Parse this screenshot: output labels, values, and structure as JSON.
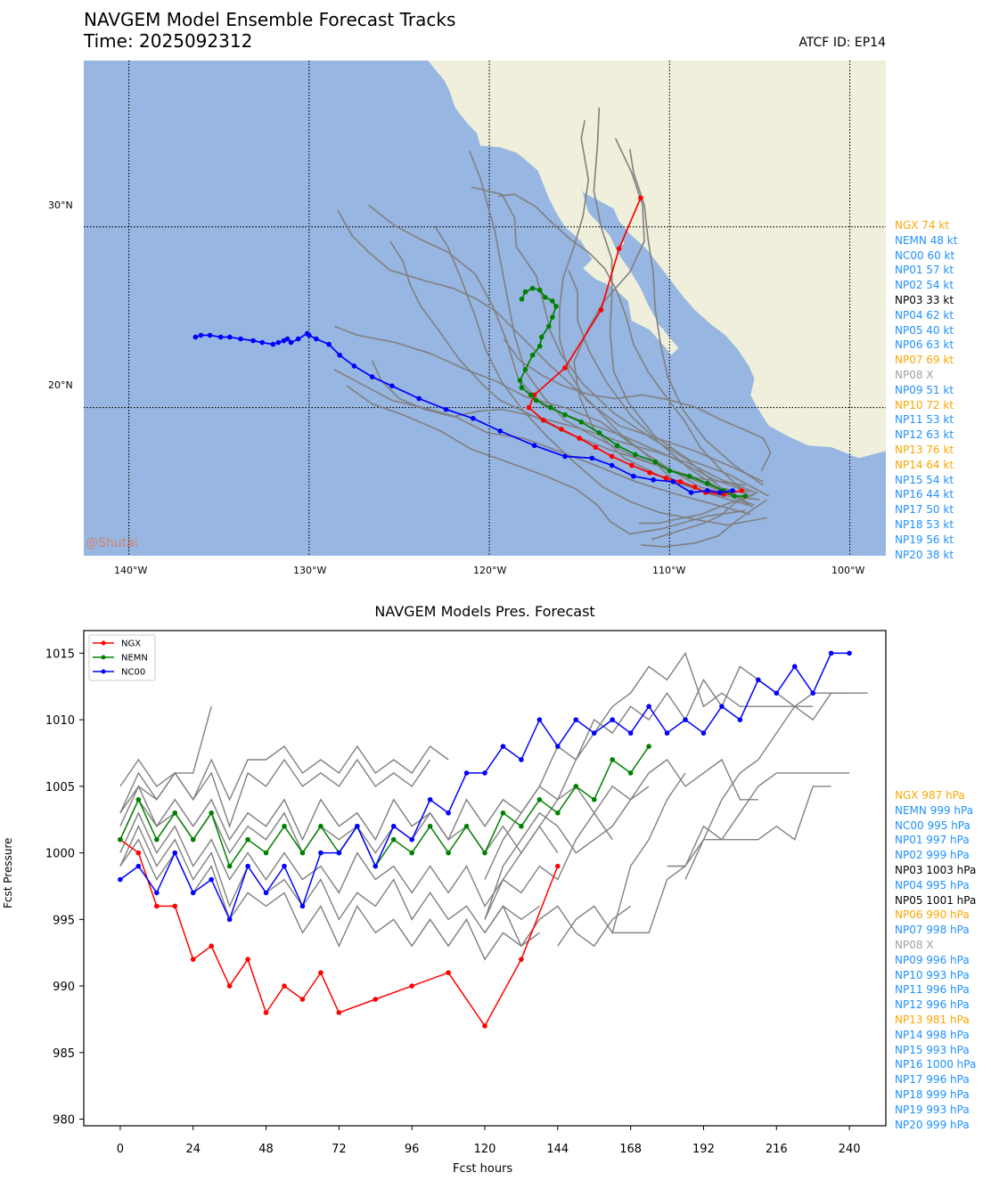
{
  "header": {
    "title": "NAVGEM Model Ensemble Forecast Tracks",
    "time_label": "Time: 2025092312",
    "atcf_label": "ATCF ID: EP14"
  },
  "map": {
    "lat_ticks": [
      "30°N",
      "20°N"
    ],
    "lon_ticks": [
      "140°W",
      "130°W",
      "120°W",
      "110°W",
      "100°W"
    ],
    "watermark": "@Shutai",
    "colors": {
      "ocean": "#97b6e1",
      "land": "#efefdc",
      "ngx": "#ff0000",
      "nemn": "#008000",
      "nc00": "#0000ff",
      "members": "#808080"
    }
  },
  "track_labels": [
    {
      "text": "NGX 74 kt",
      "color": "#ffa500"
    },
    {
      "text": "NEMN 48 kt",
      "color": "#1e90ff"
    },
    {
      "text": "NC00 60 kt",
      "color": "#1e90ff"
    },
    {
      "text": "NP01 57 kt",
      "color": "#1e90ff"
    },
    {
      "text": "NP02 54 kt",
      "color": "#1e90ff"
    },
    {
      "text": "NP03 33 kt",
      "color": "#000000"
    },
    {
      "text": "NP04 62 kt",
      "color": "#1e90ff"
    },
    {
      "text": "NP05 40 kt",
      "color": "#1e90ff"
    },
    {
      "text": "NP06 63 kt",
      "color": "#1e90ff"
    },
    {
      "text": "NP07 69 kt",
      "color": "#ffa500"
    },
    {
      "text": "NP08 X",
      "color": "#a0a0a0"
    },
    {
      "text": "NP09 51 kt",
      "color": "#1e90ff"
    },
    {
      "text": "NP10 72 kt",
      "color": "#ffa500"
    },
    {
      "text": "NP11 53 kt",
      "color": "#1e90ff"
    },
    {
      "text": "NP12 63 kt",
      "color": "#1e90ff"
    },
    {
      "text": "NP13 76 kt",
      "color": "#ffa500"
    },
    {
      "text": "NP14 64 kt",
      "color": "#ffa500"
    },
    {
      "text": "NP15 54 kt",
      "color": "#1e90ff"
    },
    {
      "text": "NP16 44 kt",
      "color": "#1e90ff"
    },
    {
      "text": "NP17 50 kt",
      "color": "#1e90ff"
    },
    {
      "text": "NP18 53 kt",
      "color": "#1e90ff"
    },
    {
      "text": "NP19 56 kt",
      "color": "#1e90ff"
    },
    {
      "text": "NP20 38 kt",
      "color": "#1e90ff"
    }
  ],
  "pressure_labels": [
    {
      "text": "NGX 987 hPa",
      "color": "#ffa500"
    },
    {
      "text": "NEMN 999 hPa",
      "color": "#1e90ff"
    },
    {
      "text": "NC00 995 hPa",
      "color": "#1e90ff"
    },
    {
      "text": "NP01 997 hPa",
      "color": "#1e90ff"
    },
    {
      "text": "NP02 999 hPa",
      "color": "#1e90ff"
    },
    {
      "text": "NP03 1003 hPa",
      "color": "#000000"
    },
    {
      "text": "NP04 995 hPa",
      "color": "#1e90ff"
    },
    {
      "text": "NP05 1001 hPa",
      "color": "#000000"
    },
    {
      "text": "NP06 990 hPa",
      "color": "#ffa500"
    },
    {
      "text": "NP07 998 hPa",
      "color": "#1e90ff"
    },
    {
      "text": "NP08 X",
      "color": "#a0a0a0"
    },
    {
      "text": "NP09 996 hPa",
      "color": "#1e90ff"
    },
    {
      "text": "NP10 993 hPa",
      "color": "#1e90ff"
    },
    {
      "text": "NP11 996 hPa",
      "color": "#1e90ff"
    },
    {
      "text": "NP12 996 hPa",
      "color": "#1e90ff"
    },
    {
      "text": "NP13 981 hPa",
      "color": "#ffa500"
    },
    {
      "text": "NP14 998 hPa",
      "color": "#1e90ff"
    },
    {
      "text": "NP15 993 hPa",
      "color": "#1e90ff"
    },
    {
      "text": "NP16 1000 hPa",
      "color": "#1e90ff"
    },
    {
      "text": "NP17 996 hPa",
      "color": "#1e90ff"
    },
    {
      "text": "NP18 999 hPa",
      "color": "#1e90ff"
    },
    {
      "text": "NP19 993 hPa",
      "color": "#1e90ff"
    },
    {
      "text": "NP20 999 hPa",
      "color": "#1e90ff"
    }
  ],
  "chart_data": [
    {
      "type": "line",
      "subtype": "map-tracks",
      "title": "NAVGEM Model Ensemble Forecast Tracks",
      "xlim": [
        -142.5,
        -98.0
      ],
      "ylim": [
        11.8,
        39.2
      ],
      "xticks": [
        -140,
        -130,
        -120,
        -110,
        -100
      ],
      "yticks": [
        30,
        20
      ],
      "grid": true,
      "series": [
        {
          "name": "NGX",
          "color": "#ff0000",
          "lon": [
            -106.0,
            -107.0,
            -108.0,
            -108.6,
            -109.4,
            -110.2,
            -111.1,
            -112.1,
            -113.2,
            -114.1,
            -115.0,
            -116.0,
            -117.0,
            -117.8,
            -117.5,
            -115.8,
            -113.8,
            -112.8,
            -111.6
          ],
          "lat": [
            15.4,
            15.2,
            15.3,
            15.6,
            15.9,
            16.1,
            16.4,
            16.8,
            17.3,
            17.8,
            18.3,
            18.8,
            19.3,
            20.0,
            20.7,
            22.2,
            25.4,
            28.8,
            31.6
          ]
        },
        {
          "name": "NEMN",
          "color": "#008000",
          "lon": [
            -105.8,
            -106.4,
            -107.0,
            -107.9,
            -108.9,
            -110.0,
            -110.8,
            -111.9,
            -112.9,
            -113.9,
            -114.9,
            -115.8,
            -116.6,
            -117.4,
            -117.7,
            -118.2,
            -118.3,
            -118.0,
            -117.6,
            -117.2,
            -117.1,
            -116.7,
            -116.5,
            -116.3,
            -116.5,
            -116.9,
            -117.2,
            -117.6,
            -118.0,
            -118.2
          ],
          "lat": [
            15.1,
            15.1,
            15.4,
            15.8,
            16.2,
            16.5,
            17.0,
            17.4,
            17.9,
            18.6,
            19.2,
            19.6,
            20.0,
            20.4,
            20.7,
            21.1,
            21.5,
            22.1,
            22.9,
            23.4,
            23.9,
            24.5,
            25.0,
            25.6,
            25.9,
            26.1,
            26.5,
            26.6,
            26.4,
            26.0
          ],
          "note": ""
        },
        {
          "name": "NC00",
          "color": "#0000ff",
          "lon": [
            -106.5,
            -107.2,
            -107.9,
            -108.8,
            -109.8,
            -110.9,
            -112.0,
            -113.2,
            -114.3,
            -115.8,
            -117.5,
            -119.4,
            -120.9,
            -122.4,
            -123.9,
            -125.4,
            -126.5,
            -127.5,
            -128.3,
            -128.9,
            -129.6,
            -130.0,
            -130.1,
            -130.6,
            -131.0,
            -131.2,
            -131.4,
            -131.7,
            -132.0,
            -132.6,
            -133.1,
            -133.8,
            -134.4,
            -134.9,
            -135.5,
            -136.0,
            -136.3
          ],
          "lat": [
            15.4,
            15.3,
            15.4,
            15.3,
            15.9,
            16.0,
            16.2,
            16.8,
            17.2,
            17.3,
            17.9,
            18.7,
            19.4,
            19.9,
            20.5,
            21.2,
            21.7,
            22.3,
            22.9,
            23.5,
            23.8,
            24.0,
            24.1,
            23.8,
            23.6,
            23.8,
            23.7,
            23.6,
            23.5,
            23.6,
            23.7,
            23.8,
            23.9,
            23.9,
            24.0,
            24.0,
            23.9
          ]
        },
        {
          "name": "members",
          "color": "#808080",
          "note": "20 ensemble member tracks (NP01–NP20), unlabeled grey lines"
        }
      ]
    },
    {
      "type": "line",
      "title": "NAVGEM Models Pres. Forecast",
      "xlabel": "Fcst hours",
      "ylabel": "Fcst Pressure",
      "xlim": [
        -12,
        252
      ],
      "ylim": [
        979.5,
        1016.7
      ],
      "xticks": [
        0,
        24,
        48,
        72,
        96,
        120,
        144,
        168,
        192,
        216,
        240
      ],
      "yticks": [
        980,
        985,
        990,
        995,
        1000,
        1005,
        1010,
        1015
      ],
      "legend": "top-left",
      "series": [
        {
          "name": "NGX",
          "color": "#ff0000",
          "x": [
            0,
            6,
            12,
            18,
            24,
            30,
            36,
            42,
            48,
            54,
            60,
            66,
            72,
            84,
            96,
            108,
            120,
            132,
            144
          ],
          "y": [
            1001,
            1000,
            996,
            996,
            992,
            993,
            990,
            992,
            988,
            990,
            989,
            991,
            988,
            989,
            990,
            991,
            987,
            992,
            999
          ]
        },
        {
          "name": "NEMN",
          "color": "#008000",
          "x": [
            0,
            6,
            12,
            18,
            24,
            30,
            36,
            42,
            48,
            54,
            60,
            66,
            72,
            78,
            84,
            90,
            96,
            102,
            108,
            114,
            120,
            126,
            132,
            138,
            144,
            150,
            156,
            162,
            168,
            174
          ],
          "y": [
            1001,
            1004,
            1001,
            1003,
            1001,
            1003,
            999,
            1001,
            1000,
            1002,
            1000,
            1002,
            1000,
            1002,
            999,
            1001,
            1000,
            1002,
            1000,
            1002,
            1000,
            1003,
            1002,
            1004,
            1003,
            1005,
            1004,
            1007,
            1006,
            1008
          ]
        },
        {
          "name": "NC00",
          "color": "#0000ff",
          "x": [
            0,
            6,
            12,
            18,
            24,
            30,
            36,
            42,
            48,
            54,
            60,
            66,
            72,
            78,
            84,
            90,
            96,
            102,
            108,
            114,
            120,
            126,
            132,
            138,
            144,
            150,
            156,
            162,
            168,
            174,
            180,
            186,
            192,
            198,
            204,
            210,
            216,
            222,
            228,
            234,
            240
          ],
          "y": [
            998,
            999,
            997,
            1000,
            997,
            998,
            995,
            999,
            997,
            999,
            996,
            1000,
            1000,
            1002,
            999,
            1002,
            1001,
            1004,
            1003,
            1006,
            1006,
            1008,
            1007,
            1010,
            1008,
            1010,
            1009,
            1010,
            1009,
            1011,
            1009,
            1010,
            1009,
            1011,
            1010,
            1013,
            1012,
            1014,
            1012,
            1015,
            1015
          ]
        },
        {
          "name": "members",
          "color": "#808080",
          "note": "ensemble member pressure traces (grey, unlabeled)"
        }
      ]
    }
  ]
}
